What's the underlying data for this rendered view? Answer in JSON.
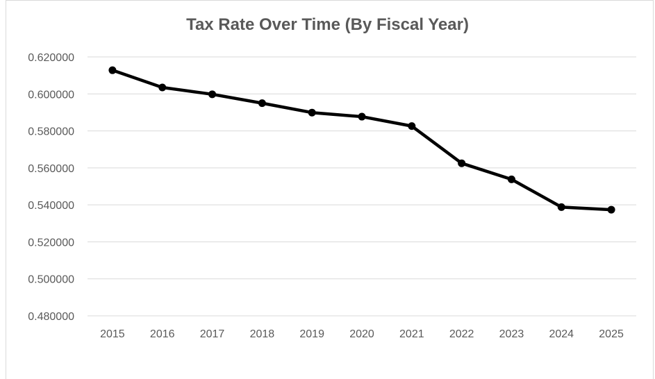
{
  "chart_data": {
    "type": "line",
    "title": "Tax Rate Over Time (By Fiscal Year)",
    "xlabel": "",
    "ylabel": "",
    "categories": [
      "2015",
      "2016",
      "2017",
      "2018",
      "2019",
      "2020",
      "2021",
      "2022",
      "2023",
      "2024",
      "2025"
    ],
    "series": [
      {
        "values": [
          0.6128,
          0.6035,
          0.5998,
          0.595,
          0.5899,
          0.5877,
          0.5826,
          0.5625,
          0.5538,
          0.5388,
          0.5374
        ],
        "color": "#000000"
      }
    ],
    "ylim": [
      0.48,
      0.62
    ],
    "yticks": [
      "0.480000",
      "0.500000",
      "0.520000",
      "0.540000",
      "0.560000",
      "0.580000",
      "0.600000",
      "0.620000"
    ],
    "grid": true,
    "legend": "none",
    "marker": "circle"
  }
}
